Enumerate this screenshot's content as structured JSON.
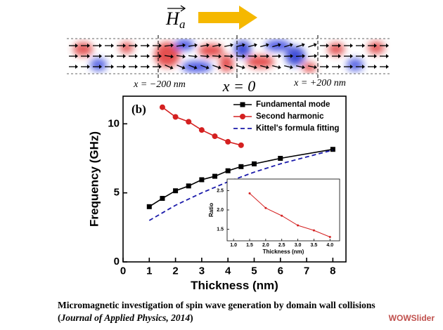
{
  "figure": {
    "field_symbol": "H",
    "field_subscript": "a",
    "pos_left": "x = −200 nm",
    "pos_center": "x = 0",
    "pos_right": "x = +200 nm"
  },
  "chart_data": [
    {
      "type": "line",
      "annotation": "(b)",
      "x_label": "Thickness (nm)",
      "y_label": "Frequency (GHz)",
      "xlim": [
        0,
        8.5
      ],
      "ylim": [
        0,
        12
      ],
      "xticks": [
        0,
        1,
        2,
        3,
        4,
        5,
        6,
        7,
        8
      ],
      "yticks": [
        0,
        5,
        10
      ],
      "legend": "upper-right",
      "series": [
        {
          "name": "Fundamental mode",
          "color": "#000000",
          "marker": "square",
          "dash": false,
          "x": [
            1,
            1.5,
            2,
            2.5,
            3,
            3.5,
            4,
            4.5,
            5,
            6,
            8
          ],
          "values": [
            4.0,
            4.6,
            5.15,
            5.5,
            5.95,
            6.2,
            6.6,
            6.9,
            7.1,
            7.5,
            8.15
          ]
        },
        {
          "name": "Second harmonic",
          "color": "#d42020",
          "marker": "circle",
          "dash": false,
          "x": [
            1.5,
            2,
            2.5,
            3,
            3.5,
            4,
            4.5
          ],
          "values": [
            11.2,
            10.5,
            10.15,
            9.55,
            9.1,
            8.7,
            8.45
          ]
        },
        {
          "name": "Kittel's formula fitting",
          "color": "#1a1aaa",
          "marker": "none",
          "dash": true,
          "x": [
            1,
            2,
            3,
            4,
            5,
            6,
            7,
            8
          ],
          "values": [
            3.0,
            4.1,
            5.0,
            5.8,
            6.5,
            7.1,
            7.6,
            8.1
          ]
        }
      ]
    },
    {
      "type": "line",
      "x_label": "Thickness (nm)",
      "y_label": "Ratio",
      "xlim": [
        0.8,
        4.3
      ],
      "ylim": [
        1.2,
        2.8
      ],
      "xticks": [
        {
          "value": 1,
          "label": "1.0"
        },
        1.5,
        {
          "value": 2,
          "label": "2.0"
        },
        2.5,
        {
          "value": 3,
          "label": "3.0"
        },
        3.5,
        {
          "value": 4,
          "label": "4.0"
        }
      ],
      "yticks": [
        1.5,
        {
          "value": 2,
          "label": "2.0"
        },
        2.5
      ],
      "series": [
        {
          "color": "#d42020",
          "marker": "dot",
          "dash": false,
          "x": [
            1.5,
            2,
            2.5,
            3,
            3.5,
            4
          ],
          "values": [
            2.43,
            2.05,
            1.85,
            1.6,
            1.47,
            1.3
          ]
        }
      ]
    }
  ],
  "caption": [
    "Micromagnetic investigation of spin wave generation by domain wall collisions (",
    "Journal of Applied Physics, 2014",
    ")"
  ],
  "watermark": "WOWSlider"
}
